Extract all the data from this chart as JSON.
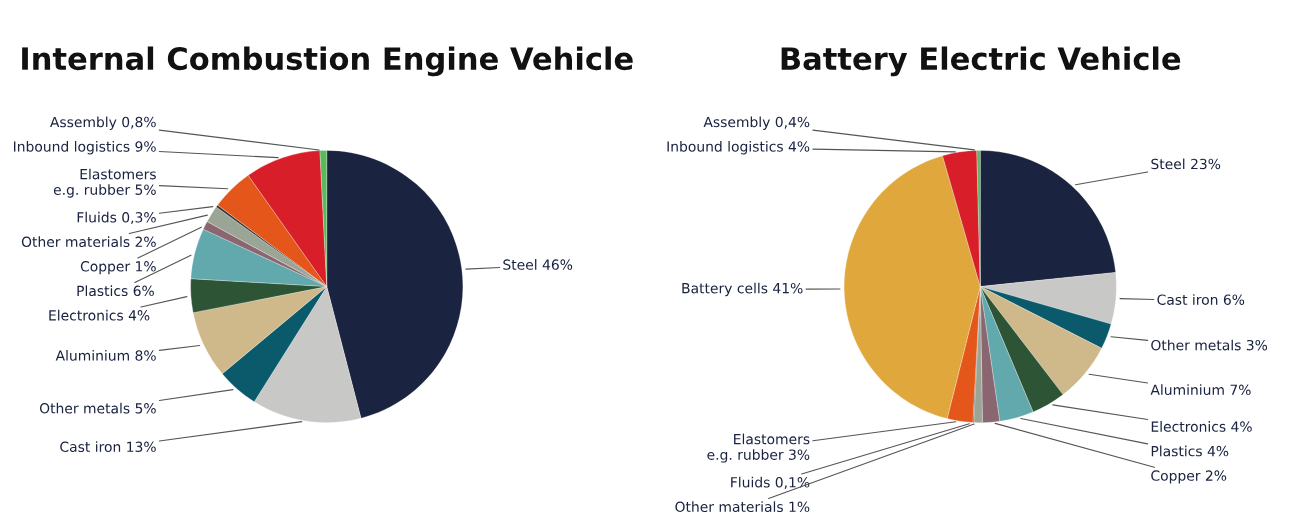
{
  "chart_data": [
    {
      "type": "pie",
      "title": "Internal Combustion Engine Vehicle",
      "categories": [
        "Steel",
        "Cast iron",
        "Other metals",
        "Aluminium",
        "Electronics",
        "Plastics",
        "Copper",
        "Other materials",
        "Fluids",
        "Elastomers\ne.g. rubber",
        "Inbound logistics",
        "Assembly"
      ],
      "values": [
        46,
        13,
        5,
        8,
        4,
        6,
        1,
        2,
        0.3,
        5,
        9,
        0.8
      ],
      "value_labels": [
        "46%",
        "13%",
        "5%",
        "8%",
        "4%",
        "6%",
        "1%",
        "2%",
        "0,3%",
        "5%",
        "9%",
        "0,8%"
      ],
      "colors": [
        "#1a2340",
        "#c8c8c6",
        "#0b5a6b",
        "#cfb98a",
        "#2d5434",
        "#62a9ae",
        "#8a6670",
        "#9aa595",
        "#3a3a3a",
        "#e4561a",
        "#d81e28",
        "#5cb85c"
      ]
    },
    {
      "type": "pie",
      "title": "Battery Electric Vehicle",
      "categories": [
        "Steel",
        "Cast iron",
        "Other metals",
        "Aluminium",
        "Electronics",
        "Plastics",
        "Copper",
        "Other materials",
        "Fluids",
        "Elastomers\ne.g. rubber",
        "Battery cells",
        "Inbound logistics",
        "Assembly"
      ],
      "values": [
        23,
        6,
        3,
        7,
        4,
        4,
        2,
        1,
        0.1,
        3,
        41,
        4,
        0.4
      ],
      "value_labels": [
        "23%",
        "6%",
        "3%",
        "7%",
        "4%",
        "4%",
        "2%",
        "1%",
        "0,1%",
        "3%",
        "41%",
        "4%",
        "0,4%"
      ],
      "colors": [
        "#1a2340",
        "#c8c8c6",
        "#0b5a6b",
        "#cfb98a",
        "#2d5434",
        "#62a9ae",
        "#8a6670",
        "#9aa595",
        "#3a3a3a",
        "#e4561a",
        "#e0a83c",
        "#d81e28",
        "#5cb85c"
      ]
    }
  ]
}
